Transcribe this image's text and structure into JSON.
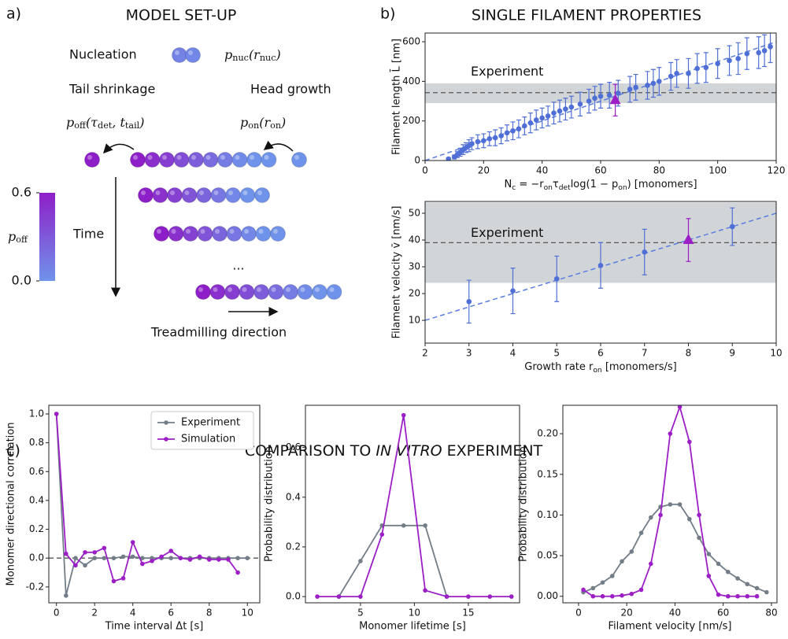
{
  "model_setup": {
    "panel_label": "a)",
    "title": "MODEL SET-UP",
    "nucleation": "Nucleation",
    "p_nuc": [
      {
        "text": "p"
      },
      {
        "text": "nuc",
        "style": "sub"
      },
      {
        "text": "(r"
      },
      {
        "text": "nuc",
        "style": "sub"
      },
      {
        "text": ")"
      }
    ],
    "tail_shrinkage": "Tail shrinkage",
    "head_growth": "Head growth",
    "p_off": [
      {
        "text": "p"
      },
      {
        "text": "off",
        "style": "sub"
      },
      {
        "text": "(τ"
      },
      {
        "text": "det",
        "style": "sub"
      },
      {
        "text": ", t"
      },
      {
        "text": "tail",
        "style": "sub"
      },
      {
        "text": ")"
      }
    ],
    "p_on": [
      {
        "text": "p"
      },
      {
        "text": "on",
        "style": "sub"
      },
      {
        "text": "(r"
      },
      {
        "text": "on",
        "style": "sub"
      },
      {
        "text": ")"
      }
    ],
    "time": "Time",
    "ellipsis": "...",
    "treadmilling": "Treadmilling direction",
    "colorbar": {
      "label": [
        {
          "text": "p"
        },
        {
          "text": "off",
          "style": "sub"
        }
      ],
      "lim": [
        0,
        0.6
      ],
      "ticks": [
        {
          "value": 0.6,
          "label": "0.6"
        },
        {
          "value": 0,
          "label": "0.0"
        }
      ]
    }
  },
  "panel_b": {
    "panel_label": "b)",
    "title": "SINGLE FILAMENT PROPERTIES"
  },
  "panel_c": {
    "panel_label": "c)",
    "title": [
      {
        "text": "COMPARISON TO "
      },
      {
        "text": "IN VITRO",
        "style": "italic"
      },
      {
        "text": " EXPERIMENT"
      }
    ]
  },
  "chart_data": [
    {
      "type": "scatter",
      "x_label": [
        {
          "text": "N"
        },
        {
          "text": "c",
          "style": "sub"
        },
        {
          "text": " = −r"
        },
        {
          "text": "on",
          "style": "sub"
        },
        {
          "text": "τ"
        },
        {
          "text": "det",
          "style": "sub"
        },
        {
          "text": "log(1 − p"
        },
        {
          "text": "on",
          "style": "sub"
        },
        {
          "text": ") [monomers]"
        }
      ],
      "y_label": "Filament length L̄ [nm]",
      "xlim": [
        0,
        120
      ],
      "ylim": [
        0,
        644
      ],
      "xticks": [
        0,
        20,
        40,
        60,
        80,
        100,
        120
      ],
      "yticks": [
        0,
        200,
        400,
        600
      ],
      "band": [
        290,
        390
      ],
      "band_color": "#d2d5d8",
      "ref_line": 343,
      "annotation": "Experiment",
      "fit": {
        "x": [
          0,
          120
        ],
        "y": [
          0,
          600
        ],
        "color": "#5a7de0"
      },
      "series": [
        {
          "color": "#4f6fd6",
          "marker": "circle",
          "x": [
            8,
            10,
            11,
            12,
            13,
            14,
            15,
            16,
            18,
            20,
            22,
            24,
            26,
            28,
            30,
            32,
            34,
            36,
            38,
            40,
            42,
            44,
            46,
            48,
            50,
            53,
            56,
            58,
            60,
            63,
            66,
            70,
            72,
            76,
            78,
            80,
            84,
            86,
            90,
            93,
            96,
            100,
            104,
            107,
            110,
            114,
            116,
            118
          ],
          "values": [
            8,
            18,
            30,
            42,
            55,
            65,
            75,
            85,
            95,
            100,
            110,
            115,
            125,
            140,
            150,
            160,
            175,
            190,
            205,
            215,
            225,
            240,
            250,
            260,
            270,
            285,
            300,
            315,
            325,
            330,
            340,
            360,
            370,
            380,
            390,
            400,
            425,
            440,
            440,
            465,
            470,
            490,
            505,
            515,
            540,
            545,
            555,
            575
          ],
          "errors": [
            6,
            10,
            15,
            20,
            25,
            25,
            30,
            30,
            35,
            35,
            35,
            40,
            40,
            40,
            45,
            45,
            45,
            50,
            50,
            50,
            50,
            55,
            55,
            55,
            55,
            60,
            60,
            60,
            60,
            65,
            65,
            65,
            65,
            70,
            70,
            70,
            70,
            70,
            75,
            75,
            75,
            75,
            75,
            80,
            80,
            80,
            80,
            80
          ]
        },
        {
          "color": "#9b1fc5",
          "marker": "triangle",
          "x": [
            65
          ],
          "values": [
            305
          ],
          "errors": [
            80
          ]
        }
      ]
    },
    {
      "type": "scatter",
      "x_label": [
        {
          "text": "Growth rate r"
        },
        {
          "text": "on",
          "style": "sub"
        },
        {
          "text": " [monomers/s]"
        }
      ],
      "y_label": "Filament velocity v̄ [nm/s]",
      "xlim": [
        2,
        10
      ],
      "ylim": [
        1.5,
        54.4
      ],
      "xticks": [
        2,
        3,
        4,
        5,
        6,
        7,
        8,
        9,
        10
      ],
      "yticks": [
        10,
        20,
        30,
        40,
        50
      ],
      "band": [
        24,
        54
      ],
      "band_color": "#d2d5d8",
      "ref_line": 39,
      "annotation": "Experiment",
      "fit": {
        "x": [
          2,
          10
        ],
        "y": [
          10,
          50
        ],
        "color": "#5a7de0"
      },
      "series": [
        {
          "color": "#4f6fd6",
          "marker": "circle",
          "x": [
            3,
            4,
            5,
            6,
            7,
            9
          ],
          "values": [
            17,
            21,
            25.5,
            30.5,
            35.5,
            45
          ],
          "errors": [
            8,
            8.5,
            8.5,
            8.5,
            8.5,
            7
          ]
        },
        {
          "color": "#9b1fc5",
          "marker": "triangle",
          "x": [
            8
          ],
          "values": [
            40
          ],
          "errors": [
            8
          ]
        }
      ]
    },
    {
      "type": "line",
      "x_label": "Time interval Δt [s]",
      "y_label": "Monomer directional correlation",
      "xlim": [
        -0.4,
        10.65
      ],
      "ylim": [
        -0.31,
        1.06
      ],
      "xticks": [
        0,
        2,
        4,
        6,
        8,
        10
      ],
      "yticks": [
        -0.2,
        {
          "value": 0,
          "label": "0.0"
        },
        0.2,
        0.4,
        0.6,
        0.8,
        {
          "value": 1,
          "label": "1.0"
        }
      ],
      "ref_line": 0,
      "legend": "upper right",
      "x": [
        0,
        0.5,
        1,
        1.5,
        2,
        2.5,
        3,
        3.5,
        4,
        4.5,
        5,
        5.5,
        6,
        6.5,
        7,
        7.5,
        8,
        8.5,
        9,
        9.5,
        10
      ],
      "series": [
        {
          "name": "Experiment",
          "color": "#727d88",
          "values": [
            1,
            -0.26,
            0,
            -0.05,
            0,
            0,
            0,
            0.01,
            0.01,
            0,
            0,
            0,
            0,
            0,
            0,
            0,
            0,
            0,
            0,
            0,
            0
          ]
        },
        {
          "name": "Simulation",
          "color": "#9b1fc5",
          "values": [
            1,
            0.03,
            -0.05,
            0.04,
            0.04,
            0.07,
            -0.16,
            -0.14,
            0.11,
            -0.04,
            -0.02,
            0.01,
            0.05,
            0,
            -0.01,
            0.01,
            -0.01,
            -0.01,
            -0.01,
            -0.1,
            null
          ]
        }
      ]
    },
    {
      "type": "line",
      "x_label": "Monomer lifetime [s]",
      "y_label": "Probability distribution",
      "xlim": [
        -0.1,
        19.75
      ],
      "ylim": [
        -0.025,
        0.77
      ],
      "xticks": [
        5,
        10,
        15
      ],
      "yticks": [
        {
          "value": 0,
          "label": "0.0"
        },
        0.2,
        0.4,
        0.6
      ],
      "x": [
        1,
        3,
        5,
        7,
        9,
        11,
        13,
        15,
        17,
        19
      ],
      "series": [
        {
          "name": "Experiment",
          "color": "#727d88",
          "values": [
            null,
            0,
            0.143,
            0.286,
            0.286,
            0.286,
            0,
            null,
            null,
            null
          ]
        },
        {
          "name": "Simulation",
          "color": "#9b1fc5",
          "values": [
            0,
            0,
            0,
            0.25,
            0.73,
            0.025,
            0,
            0,
            0,
            0
          ]
        }
      ]
    },
    {
      "type": "line",
      "x_label": "Filament velocity [nm/s]",
      "y_label": "Probability distribution",
      "xlim": [
        -6.5,
        82.3
      ],
      "ylim": [
        -0.008,
        0.235
      ],
      "xticks": [
        0,
        20,
        40,
        60,
        80
      ],
      "yticks": [
        {
          "value": 0,
          "label": "0.00"
        },
        0.05,
        {
          "value": 0.1,
          "label": "0.10"
        },
        0.15,
        {
          "value": 0.2,
          "label": "0.20"
        }
      ],
      "x": [
        2,
        6,
        10,
        14,
        18,
        22,
        26,
        30,
        34,
        38,
        42,
        46,
        50,
        54,
        58,
        62,
        66,
        70,
        74,
        78
      ],
      "series": [
        {
          "name": "Experiment",
          "color": "#727d88",
          "values": [
            0.005,
            0.01,
            0.017,
            0.025,
            0.043,
            0.055,
            0.078,
            0.097,
            0.11,
            0.113,
            0.113,
            0.095,
            0.072,
            0.052,
            0.04,
            0.03,
            0.022,
            0.015,
            0.01,
            0.005
          ]
        },
        {
          "name": "Simulation",
          "color": "#9b1fc5",
          "values": [
            0.008,
            0,
            0,
            0,
            0.001,
            0.003,
            0.008,
            0.04,
            0.1,
            0.2,
            0.233,
            0.19,
            0.1,
            0.025,
            0.002,
            0,
            0,
            0,
            0,
            null
          ]
        }
      ]
    }
  ]
}
